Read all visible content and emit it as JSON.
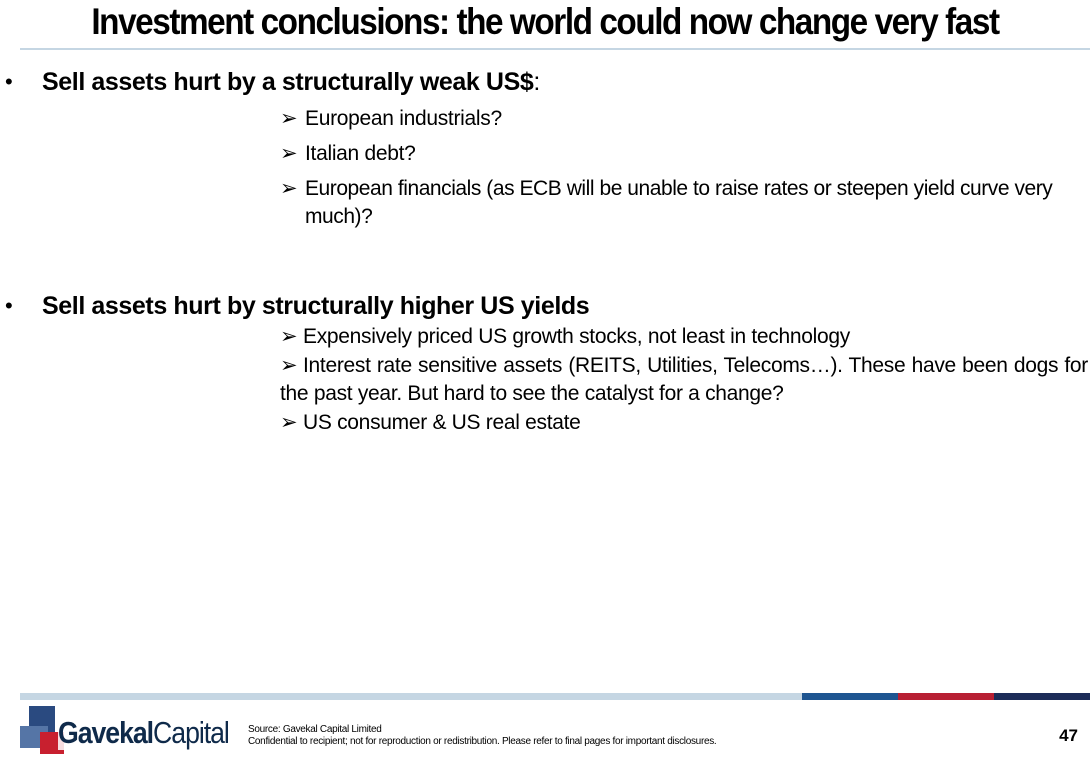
{
  "title": "Investment conclusions: the world could now change very fast",
  "section1": {
    "bullet": "•",
    "heading_bold": "Sell assets hurt by a structurally weak US$",
    "heading_suffix": ":",
    "items": [
      "European industrials?",
      "Italian debt?",
      "European financials (as ECB will be unable to raise rates or steepen yield curve very much)?"
    ]
  },
  "section2": {
    "bullet": "•",
    "heading": "Sell assets hurt by structurally higher US yields",
    "items": [
      "Expensively priced US growth stocks, not least in technology",
      "Interest rate sensitive assets (REITS, Utilities, Telecoms…). These have been dogs for the past year. But hard to see the catalyst for a change?",
      "US consumer & US real estate"
    ]
  },
  "arrow_glyph": "➢",
  "footer": {
    "logo_bold": "Gavekal",
    "logo_regular": "Capital",
    "source": "Source: Gavekal Capital Limited",
    "disclaimer": "Confidential to recipient; not for reproduction or redistribution. Please refer to final pages for important disclosures.",
    "page_number": "47",
    "bar_colors": [
      "#c5d6e3",
      "#1e5591",
      "#b81f33",
      "#1c2c58"
    ]
  }
}
